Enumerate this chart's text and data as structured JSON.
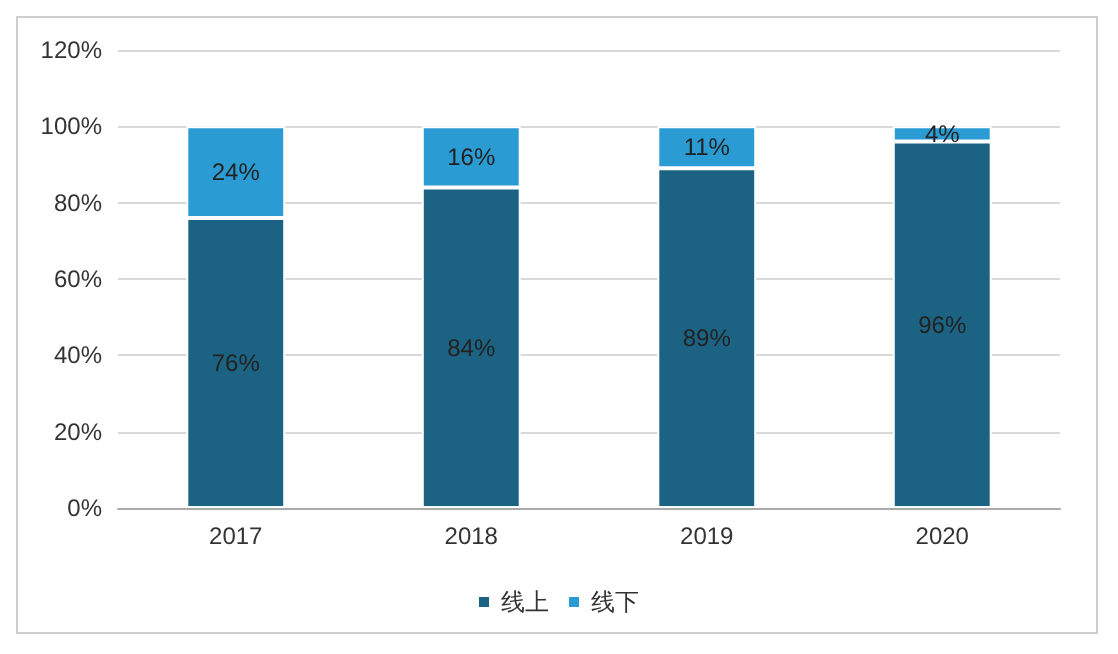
{
  "chart_data": {
    "type": "bar",
    "stacked": true,
    "categories": [
      "2017",
      "2018",
      "2019",
      "2020"
    ],
    "series": [
      {
        "name": "线上",
        "color": "#1b6283",
        "values": [
          76,
          84,
          89,
          96
        ],
        "value_labels": [
          "76%",
          "84%",
          "89%",
          "96%"
        ]
      },
      {
        "name": "线下",
        "color": "#2b9bd3",
        "values": [
          24,
          16,
          11,
          4
        ],
        "value_labels": [
          "24%",
          "16%",
          "11%",
          "4%"
        ]
      }
    ],
    "ylim": [
      0,
      120
    ],
    "yticks": [
      {
        "value": 0,
        "label": "0%"
      },
      {
        "value": 20,
        "label": "20%"
      },
      {
        "value": 40,
        "label": "40%"
      },
      {
        "value": 60,
        "label": "60%"
      },
      {
        "value": 80,
        "label": "80%"
      },
      {
        "value": 100,
        "label": "100%"
      },
      {
        "value": 120,
        "label": "120%"
      }
    ],
    "grid": "y",
    "legend": "bottom"
  }
}
